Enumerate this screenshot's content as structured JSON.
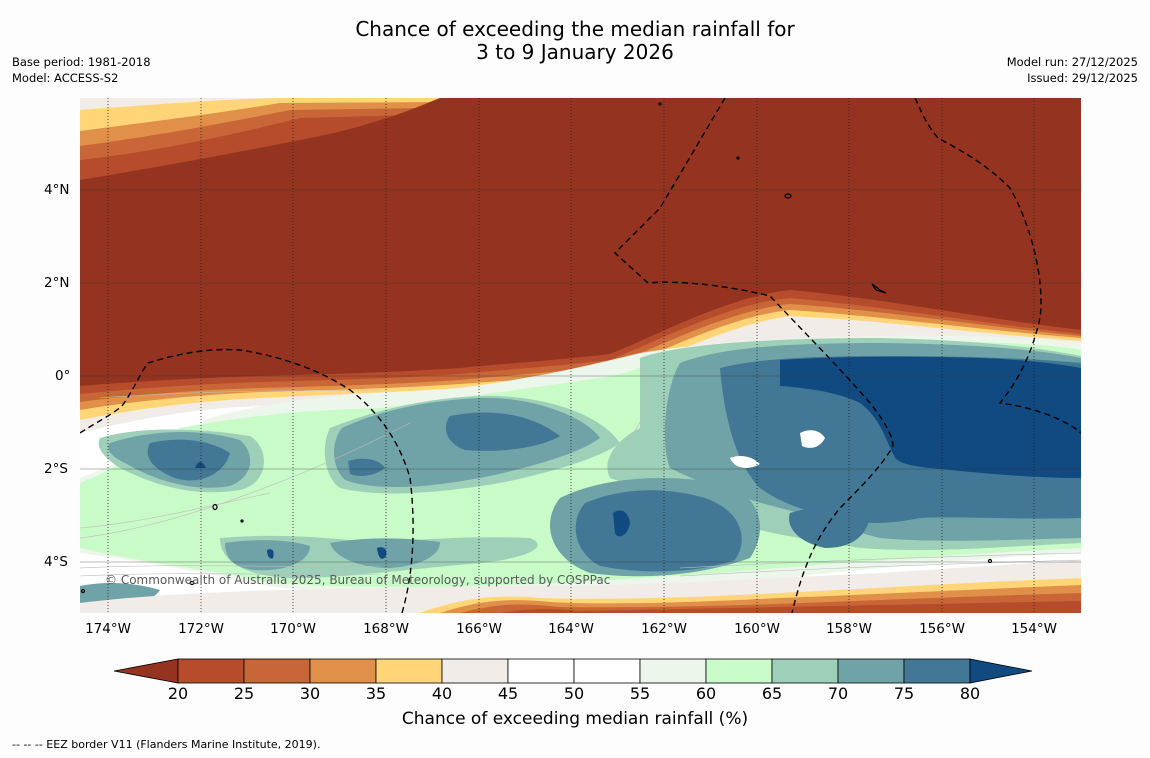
{
  "title": {
    "line1": "Chance of exceeding the median rainfall for",
    "line2": "3 to 9 January 2026"
  },
  "meta_left": {
    "base_period": "Base period: 1981-2018",
    "model": "Model: ACCESS-S2"
  },
  "meta_right": {
    "model_run": "Model run: 27/12/2025",
    "issued": "Issued: 29/12/2025"
  },
  "map": {
    "latitude_labels": [
      "4°N",
      "2°N",
      "0°",
      "2°S",
      "4°S"
    ],
    "longitude_labels": [
      "174°W",
      "172°W",
      "170°W",
      "168°W",
      "166°W",
      "164°W",
      "162°W",
      "160°W",
      "158°W",
      "156°W",
      "154°W"
    ],
    "copyright": "© Commonwealth of Australia 2025, Bureau of Meteorology, supported by COSPPac"
  },
  "colorbar": {
    "ticks": [
      "20",
      "25",
      "30",
      "35",
      "40",
      "45",
      "50",
      "55",
      "60",
      "65",
      "70",
      "75",
      "80"
    ],
    "colors": [
      "#943420",
      "#b64c2c",
      "#c96637",
      "#e09048",
      "#ffd577",
      "#f1ece7",
      "#ffffff",
      "#ffffff",
      "#ecf6ea",
      "#c8fbc8",
      "#9ed0b9",
      "#6fa3a7",
      "#427896",
      "#104a80"
    ],
    "label": "Chance of exceeding median rainfall (%)"
  },
  "footnote": "--  --  -- EEZ border V11 (Flanders Marine Institute, 2019)."
}
